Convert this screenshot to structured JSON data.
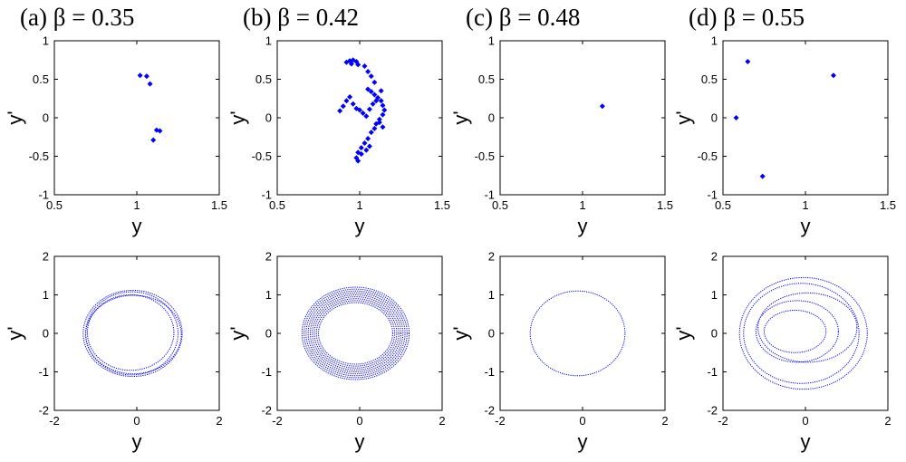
{
  "figure": {
    "series_color": "#0000ff"
  },
  "chart_data": [
    {
      "type": "scatter",
      "title": "(a) β = 0.35",
      "xlabel": "y",
      "ylabel": "y'",
      "xlim": [
        0.5,
        1.5
      ],
      "ylim": [
        -1,
        1
      ],
      "xticks": [
        "0.5",
        "1",
        "1.5"
      ],
      "yticks": [
        "-1",
        "-0.5",
        "0",
        "0.5",
        "1"
      ],
      "marker": "diamond",
      "points": [
        [
          1.02,
          0.55
        ],
        [
          1.06,
          0.54
        ],
        [
          1.08,
          0.44
        ],
        [
          1.12,
          -0.16
        ],
        [
          1.14,
          -0.17
        ],
        [
          1.1,
          -0.29
        ]
      ]
    },
    {
      "type": "scatter",
      "title": "(b) β = 0.42",
      "xlabel": "y",
      "ylabel": "y'",
      "xlim": [
        0.5,
        1.5
      ],
      "ylim": [
        -1,
        1
      ],
      "xticks": [
        "0.5",
        "1",
        "1.5"
      ],
      "yticks": [
        "-1",
        "-0.5",
        "0",
        "0.5",
        "1"
      ],
      "marker": "diamond",
      "points": [
        [
          0.92,
          0.72
        ],
        [
          0.94,
          0.74
        ],
        [
          0.96,
          0.75
        ],
        [
          0.98,
          0.73
        ],
        [
          0.95,
          0.7
        ],
        [
          0.99,
          0.69
        ],
        [
          1.03,
          0.67
        ],
        [
          1.05,
          0.6
        ],
        [
          1.07,
          0.54
        ],
        [
          1.09,
          0.46
        ],
        [
          1.05,
          0.37
        ],
        [
          1.07,
          0.34
        ],
        [
          1.09,
          0.3
        ],
        [
          1.11,
          0.26
        ],
        [
          1.13,
          0.22
        ],
        [
          1.14,
          0.16
        ],
        [
          1.15,
          0.1
        ],
        [
          1.14,
          0.04
        ],
        [
          1.12,
          -0.02
        ],
        [
          1.1,
          -0.08
        ],
        [
          1.09,
          -0.14
        ],
        [
          1.07,
          -0.19
        ],
        [
          1.05,
          -0.27
        ],
        [
          1.03,
          -0.33
        ],
        [
          1.01,
          -0.39
        ],
        [
          0.99,
          -0.45
        ],
        [
          0.98,
          -0.52
        ],
        [
          0.99,
          -0.56
        ],
        [
          1.01,
          -0.47
        ],
        [
          1.04,
          -0.42
        ],
        [
          1.06,
          -0.37
        ],
        [
          0.88,
          0.09
        ],
        [
          0.9,
          0.15
        ],
        [
          0.92,
          0.22
        ],
        [
          0.94,
          0.27
        ],
        [
          0.96,
          0.18
        ],
        [
          0.98,
          0.12
        ],
        [
          1.0,
          0.1
        ],
        [
          1.02,
          0.06
        ],
        [
          1.04,
          0.02
        ],
        [
          1.06,
          0.11
        ],
        [
          1.08,
          0.18
        ],
        [
          1.1,
          0.22
        ],
        [
          1.13,
          0.35
        ],
        [
          1.12,
          -0.06
        ],
        [
          1.14,
          -0.12
        ]
      ]
    },
    {
      "type": "scatter",
      "title": "(c) β = 0.48",
      "xlabel": "y",
      "ylabel": "y'",
      "xlim": [
        0.5,
        1.5
      ],
      "ylim": [
        -1,
        1
      ],
      "xticks": [
        "0.5",
        "1",
        "1.5"
      ],
      "yticks": [
        "-1",
        "-0.5",
        "0",
        "0.5",
        "1"
      ],
      "marker": "diamond",
      "points": [
        [
          1.12,
          0.15
        ]
      ]
    },
    {
      "type": "scatter",
      "title": "(d) β = 0.55",
      "xlabel": "y",
      "ylabel": "y'",
      "xlim": [
        0.5,
        1.5
      ],
      "ylim": [
        -1,
        1
      ],
      "xticks": [
        "0.5",
        "1",
        "1.5"
      ],
      "yticks": [
        "-1",
        "-0.5",
        "0",
        "0.5",
        "1"
      ],
      "marker": "diamond",
      "points": [
        [
          0.58,
          0.0
        ],
        [
          0.65,
          0.73
        ],
        [
          1.17,
          0.55
        ],
        [
          0.74,
          -0.76
        ]
      ]
    },
    {
      "type": "scatter",
      "title": "",
      "xlabel": "y",
      "ylabel": "y'",
      "xlim": [
        -2,
        2
      ],
      "ylim": [
        -2,
        2
      ],
      "xticks": [
        "-2",
        "0",
        "2"
      ],
      "yticks": [
        "-2",
        "-1",
        "0",
        "1",
        "2"
      ],
      "marker": "dot",
      "loops": [
        {
          "cx": -0.12,
          "cy": 0.0,
          "rx": 1.12,
          "ry": 1.08
        },
        {
          "cx": -0.1,
          "cy": 0.0,
          "rx": 1.2,
          "ry": 1.12
        },
        {
          "cx": -0.15,
          "cy": 0.02,
          "rx": 1.05,
          "ry": 0.98
        },
        {
          "cx": -0.08,
          "cy": -0.03,
          "rx": 1.16,
          "ry": 1.02
        }
      ]
    },
    {
      "type": "scatter",
      "title": "",
      "xlabel": "y",
      "ylabel": "y'",
      "xlim": [
        -2,
        2
      ],
      "ylim": [
        -2,
        2
      ],
      "xticks": [
        "-2",
        "0",
        "2"
      ],
      "yticks": [
        "-2",
        "-1",
        "0",
        "1",
        "2"
      ],
      "marker": "dot",
      "loops": [
        {
          "cx": -0.1,
          "cy": 0.0,
          "rx": 1.3,
          "ry": 1.2
        },
        {
          "cx": -0.1,
          "cy": 0.0,
          "rx": 1.25,
          "ry": 1.15
        },
        {
          "cx": -0.1,
          "cy": 0.0,
          "rx": 1.2,
          "ry": 1.1
        },
        {
          "cx": -0.1,
          "cy": 0.0,
          "rx": 1.15,
          "ry": 1.05
        },
        {
          "cx": -0.1,
          "cy": 0.0,
          "rx": 1.1,
          "ry": 1.0
        },
        {
          "cx": -0.1,
          "cy": 0.0,
          "rx": 1.05,
          "ry": 0.95
        },
        {
          "cx": -0.1,
          "cy": 0.0,
          "rx": 1.0,
          "ry": 0.9
        },
        {
          "cx": -0.1,
          "cy": 0.0,
          "rx": 0.95,
          "ry": 0.85
        },
        {
          "cx": -0.1,
          "cy": 0.0,
          "rx": 0.9,
          "ry": 0.8
        }
      ]
    },
    {
      "type": "scatter",
      "title": "",
      "xlabel": "y",
      "ylabel": "y'",
      "xlim": [
        -2,
        2
      ],
      "ylim": [
        -2,
        2
      ],
      "xticks": [
        "-2",
        "0",
        "2"
      ],
      "yticks": [
        "-2",
        "-1",
        "0",
        "1",
        "2"
      ],
      "marker": "dot",
      "loops": [
        {
          "cx": -0.12,
          "cy": 0.0,
          "rx": 1.15,
          "ry": 1.1
        }
      ]
    },
    {
      "type": "scatter",
      "title": "",
      "xlabel": "y",
      "ylabel": "y'",
      "xlim": [
        -2,
        2
      ],
      "ylim": [
        -2,
        2
      ],
      "xticks": [
        "-2",
        "0",
        "2"
      ],
      "yticks": [
        "-2",
        "-1",
        "0",
        "1",
        "2"
      ],
      "marker": "dot",
      "loops": [
        {
          "cx": -0.05,
          "cy": 0.0,
          "rx": 1.55,
          "ry": 1.45
        },
        {
          "cx": -0.1,
          "cy": 0.0,
          "rx": 1.4,
          "ry": 1.3
        },
        {
          "cx": 0.05,
          "cy": 0.15,
          "rx": 1.2,
          "ry": 0.9
        },
        {
          "cx": -0.2,
          "cy": 0.05,
          "rx": 1.0,
          "ry": 0.8
        },
        {
          "cx": -0.25,
          "cy": 0.05,
          "rx": 0.75,
          "ry": 0.55
        }
      ]
    }
  ]
}
